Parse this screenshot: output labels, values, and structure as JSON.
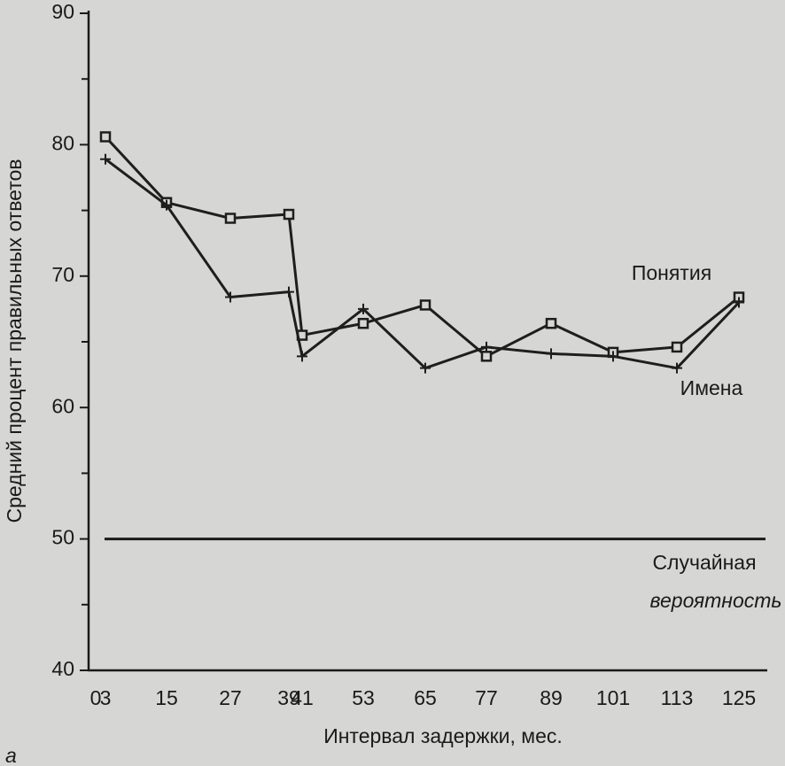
{
  "chart_data": {
    "type": "line",
    "y_label": "Средний процент правильных ответов",
    "x_label": "Интервал задержки, мес.",
    "categories": [
      "0",
      "3",
      "15",
      "27",
      "39",
      "41",
      "53",
      "65",
      "77",
      "89",
      "101",
      "113",
      "125"
    ],
    "series": [
      {
        "name": "Понятия",
        "color": "#1e1e1e",
        "marker": "square",
        "values": [
          null,
          80.6,
          75.6,
          74.4,
          74.7,
          65.5,
          66.4,
          67.8,
          63.9,
          66.4,
          64.2,
          64.6,
          68.4
        ]
      },
      {
        "name": "Имена",
        "color": "#1e1e1e",
        "marker": "plus",
        "values": [
          null,
          78.9,
          75.4,
          68.4,
          68.8,
          63.9,
          67.5,
          63.0,
          64.6,
          64.1,
          63.9,
          63.0,
          68.0
        ]
      }
    ],
    "chance": {
      "value": 50,
      "label": [
        "Случайная",
        "вероятность"
      ]
    },
    "ylim": [
      40,
      90
    ],
    "yticks": [
      40,
      50,
      60,
      70,
      80,
      90
    ],
    "yminor": [
      45,
      55,
      65,
      75,
      85
    ],
    "panel": "а"
  }
}
